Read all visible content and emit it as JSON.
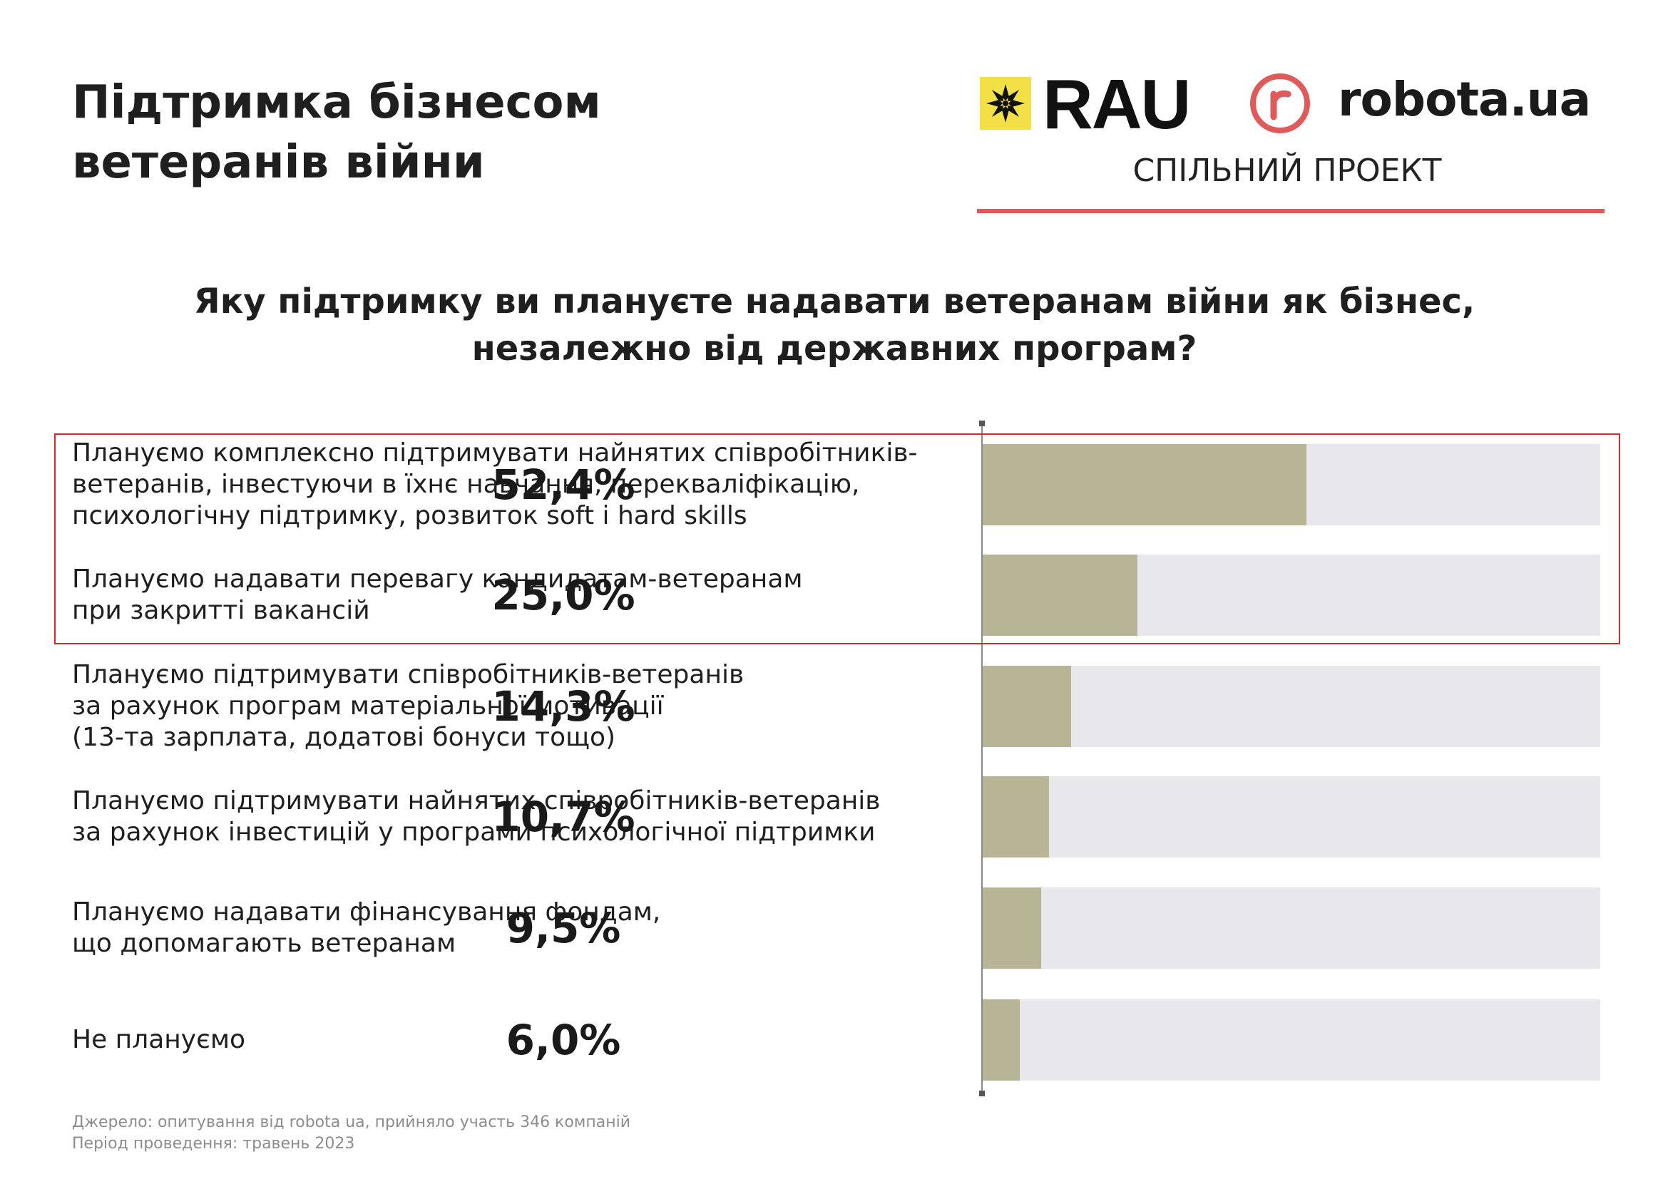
{
  "header": {
    "title_line1": "Підтримка бізнесом",
    "title_line2": "ветеранів війни",
    "logo_rau": "RAU",
    "logo_robota": "robota.ua",
    "joint_project": "СПІЛЬНИЙ ПРОЕКТ",
    "accent_color": "#e05a5a"
  },
  "question": {
    "line1": "Яку підтримку ви плануєте надавати ветеранам війни як бізнес,",
    "line2": "незалежно від державних програм?"
  },
  "chart_data": {
    "type": "bar",
    "orientation": "horizontal",
    "title": "Яку підтримку ви плануєте надавати ветеранам війни як бізнес, незалежно від державних програм?",
    "xlim": [
      0,
      100
    ],
    "unit": "%",
    "categories": [
      [
        "Плануємо комплексно підтримувати найнятих співробітників-",
        "ветеранів, інвестуючи в їхнє навчання, перекваліфікацію,",
        "психологічну підтримку, розвиток soft і hard skills"
      ],
      [
        "Плануємо надавати перевагу кандидатам-ветеранам",
        "при закритті вакансій"
      ],
      [
        "Плануємо підтримувати співробітників-ветеранів",
        "за рахунок програм матеріальної мотивації",
        "(13-та зарплата, додатові бонуси тощо)"
      ],
      [
        "Плануємо підтримувати найнятих співробітників-ветеранів",
        "за рахунок інвестицій у програми психологічної підтримки"
      ],
      [
        "Плануємо надавати фінансування фондам,",
        "що допомагають ветеранам"
      ],
      [
        "Не плануємо"
      ]
    ],
    "values": [
      52.4,
      25.0,
      14.3,
      10.7,
      9.5,
      6.0
    ],
    "value_labels": [
      "52,4%",
      "25,0%",
      "14,3%",
      "10,7%",
      "9,5%",
      "6,0%"
    ],
    "highlighted_rows": [
      0,
      1
    ],
    "bar_color": "#b7b596",
    "track_color": "#e8e7ec",
    "highlight_color": "#d62a2a"
  },
  "footnote": {
    "source": "Джерело: опитування від robota ua, прийняло участь 346 компаній",
    "period": "Період проведення: травень 2023"
  }
}
